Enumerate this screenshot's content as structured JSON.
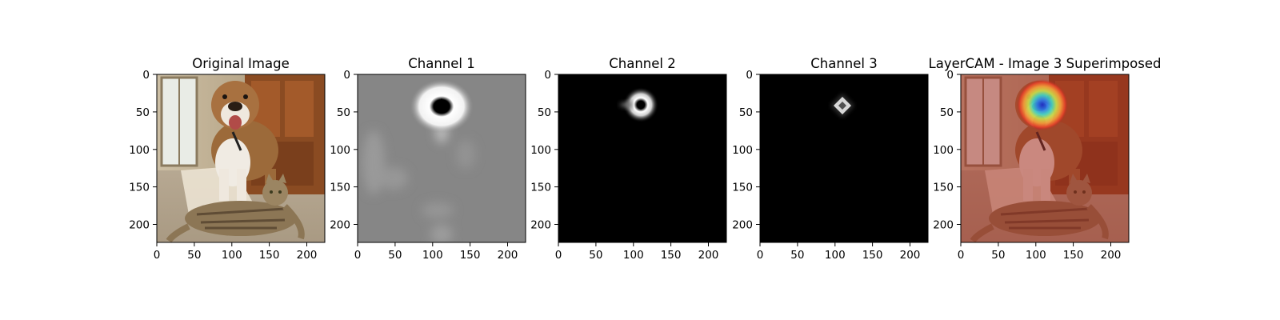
{
  "panels": [
    {
      "title": "Original Image",
      "image": "photo-dog-cat"
    },
    {
      "title": "Channel 1",
      "image": "heatmap-channel-1"
    },
    {
      "title": "Channel 2",
      "image": "heatmap-channel-2"
    },
    {
      "title": "Channel 3",
      "image": "heatmap-channel-3"
    },
    {
      "title": "LayerCAM - Image 3 Superimposed",
      "image": "photo-dog-cat-jet-overlay"
    }
  ],
  "axes": {
    "x_ticks": [
      "0",
      "50",
      "100",
      "150",
      "200"
    ],
    "y_ticks": [
      "0",
      "50",
      "100",
      "150",
      "200"
    ],
    "extent": [
      0,
      224
    ]
  }
}
